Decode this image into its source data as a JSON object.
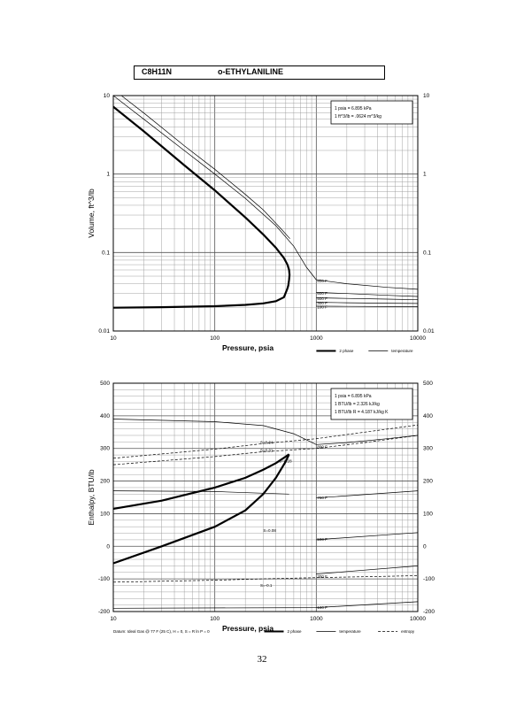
{
  "header": {
    "formula": "C8H11N",
    "name": "o-ETHYLANILINE"
  },
  "page_number": "32",
  "chart_data": [
    {
      "type": "line",
      "xscale": "log",
      "yscale": "log",
      "xlabel": "Pressure,  psia",
      "ylabel": "Volume, ft^3/lb",
      "xlim": [
        10,
        10000
      ],
      "ylim": [
        0.01,
        10
      ],
      "xticks": [
        "10",
        "100",
        "1000",
        "10000"
      ],
      "yticks": [
        "0.01",
        "0.1",
        "1",
        "10"
      ],
      "grid": true,
      "conversions": [
        "1 psia  =  6.895 kPa",
        "1 ft^3/lb  =  .0624 m^3/kg"
      ],
      "legend": [
        {
          "label": "2 phase",
          "style": "thick"
        },
        {
          "label": "temperature",
          "style": "thin"
        }
      ],
      "series": [
        {
          "style": "thick",
          "role": "vapor",
          "x": [
            10,
            20,
            50,
            100,
            200,
            300,
            400,
            480,
            520
          ],
          "y": [
            7.2,
            3.5,
            1.3,
            0.62,
            0.28,
            0.17,
            0.115,
            0.085,
            0.07
          ]
        },
        {
          "style": "thick",
          "role": "nose",
          "x": [
            520,
            540,
            545,
            540,
            530,
            520
          ],
          "y": [
            0.07,
            0.06,
            0.052,
            0.045,
            0.038,
            0.035
          ]
        },
        {
          "style": "thick",
          "role": "liquid",
          "x": [
            10,
            30,
            100,
            200,
            300,
            400,
            480,
            520
          ],
          "y": [
            0.0198,
            0.0201,
            0.0207,
            0.0215,
            0.0225,
            0.024,
            0.027,
            0.035
          ]
        },
        {
          "style": "thin",
          "x": [
            10,
            20,
            50,
            100,
            200,
            400,
            600,
            800,
            1000
          ],
          "y": [
            10,
            5,
            2,
            1,
            0.49,
            0.22,
            0.12,
            0.065,
            0.045
          ]
        },
        {
          "style": "thin",
          "x": [
            12,
            20,
            50,
            100,
            200,
            300,
            450,
            550
          ],
          "y": [
            10,
            6,
            2.3,
            1.15,
            0.55,
            0.35,
            0.2,
            0.15
          ]
        },
        {
          "style": "thin",
          "x": [
            1000,
            2000,
            5000,
            10000
          ],
          "y": [
            0.045,
            0.04,
            0.036,
            0.034
          ]
        },
        {
          "style": "thin",
          "x": [
            1000,
            2000,
            5000,
            10000
          ],
          "y": [
            0.031,
            0.03,
            0.0285,
            0.0275
          ]
        },
        {
          "style": "thin",
          "x": [
            1000,
            2000,
            5000,
            10000
          ],
          "y": [
            0.0265,
            0.026,
            0.0255,
            0.025
          ]
        },
        {
          "style": "thin",
          "x": [
            1000,
            2000,
            5000,
            10000
          ],
          "y": [
            0.0232,
            0.0229,
            0.0226,
            0.0224
          ]
        },
        {
          "style": "thin",
          "x": [
            1000,
            2000,
            5000,
            10000
          ],
          "y": [
            0.0207,
            0.0206,
            0.0205,
            0.0204
          ]
        }
      ],
      "annotations": [
        {
          "text": "800 F",
          "x": 1020,
          "y": 0.044
        },
        {
          "text": "600 F",
          "x": 1020,
          "y": 0.0305
        },
        {
          "text": "500 F",
          "x": 1020,
          "y": 0.0262
        },
        {
          "text": "300 F",
          "x": 1020,
          "y": 0.023
        },
        {
          "text": "100 F",
          "x": 1020,
          "y": 0.0205
        }
      ]
    },
    {
      "type": "line",
      "xscale": "log",
      "yscale": "linear",
      "xlabel": "Pressure,  psia",
      "ylabel": "Enthalpy, BTU/lb",
      "xlim": [
        10,
        10000
      ],
      "ylim": [
        -200,
        500
      ],
      "xticks": [
        "10",
        "100",
        "1000",
        "10000"
      ],
      "yticks": [
        "-200",
        "-100",
        "0",
        "100",
        "200",
        "300",
        "400",
        "500"
      ],
      "grid": true,
      "conversions": [
        "1 psia  =  6.895 kPa",
        "1 BTU/lb  =  2.326 kJ/kg",
        "1 BTU/lb R  =  4.187 kJ/kg K"
      ],
      "footnote": "Datum: Ideal Gas @ 77 F (25 C),  H = 0,  S = R ln P = 0",
      "legend": [
        {
          "label": "2 phase",
          "style": "thick"
        },
        {
          "label": "temperature",
          "style": "thin"
        },
        {
          "label": "entropy",
          "style": "dashed"
        }
      ],
      "series": [
        {
          "style": "thick",
          "role": "vapor",
          "x": [
            10,
            30,
            100,
            200,
            300,
            400,
            500,
            540
          ],
          "y": [
            115,
            140,
            180,
            210,
            235,
            255,
            275,
            282
          ]
        },
        {
          "style": "thick",
          "role": "liquid",
          "x": [
            10,
            30,
            100,
            200,
            300,
            400,
            500,
            540
          ],
          "y": [
            -52,
            0,
            60,
            110,
            160,
            210,
            260,
            282
          ]
        },
        {
          "style": "thin",
          "x": [
            10,
            100,
            300,
            600,
            1000
          ],
          "y": [
            390,
            382,
            370,
            345,
            312
          ]
        },
        {
          "style": "thin",
          "x": [
            1000,
            2000,
            5000,
            10000
          ],
          "y": [
            312,
            318,
            330,
            340
          ]
        },
        {
          "style": "thin",
          "x": [
            10,
            100,
            540
          ],
          "y": [
            170,
            168,
            160
          ]
        },
        {
          "style": "thin",
          "x": [
            1000,
            10000
          ],
          "y": [
            148,
            170
          ]
        },
        {
          "style": "thin",
          "x": [
            1000,
            10000
          ],
          "y": [
            20,
            42
          ]
        },
        {
          "style": "thin",
          "x": [
            1000,
            10000
          ],
          "y": [
            -85,
            -60
          ]
        },
        {
          "style": "thin",
          "x": [
            10,
            1000,
            10000
          ],
          "y": [
            -190,
            -188,
            -170
          ]
        },
        {
          "style": "dashed",
          "x": [
            10,
            100,
            300,
            540,
            1000,
            3000,
            10000
          ],
          "y": [
            270,
            298,
            315,
            322,
            330,
            350,
            372
          ]
        },
        {
          "style": "dashed",
          "x": [
            10,
            100,
            300,
            540,
            1000,
            3000,
            10000
          ],
          "y": [
            250,
            275,
            290,
            295,
            300,
            318,
            340
          ]
        },
        {
          "style": "dashed",
          "x": [
            10,
            100,
            300,
            1000,
            10000
          ],
          "y": [
            -110,
            -104,
            -100,
            -96,
            -90
          ]
        }
      ],
      "annotations": [
        {
          "text": "S=0.34",
          "x": 280,
          "y": 320
        },
        {
          "text": "S=0.31",
          "x": 280,
          "y": 295
        },
        {
          "text": "S=0.28",
          "x": 430,
          "y": 262
        },
        {
          "text": "S=0.08",
          "x": 300,
          "y": 50
        },
        {
          "text": "S=-0.1",
          "x": 280,
          "y": -118
        },
        {
          "text": "800 F",
          "x": 1020,
          "y": 306
        },
        {
          "text": "700 F",
          "x": 1020,
          "y": 150
        },
        {
          "text": "500 F",
          "x": 1020,
          "y": 22
        },
        {
          "text": "300 F",
          "x": 1020,
          "y": -92
        },
        {
          "text": "100 F",
          "x": 1020,
          "y": -187
        }
      ]
    }
  ]
}
